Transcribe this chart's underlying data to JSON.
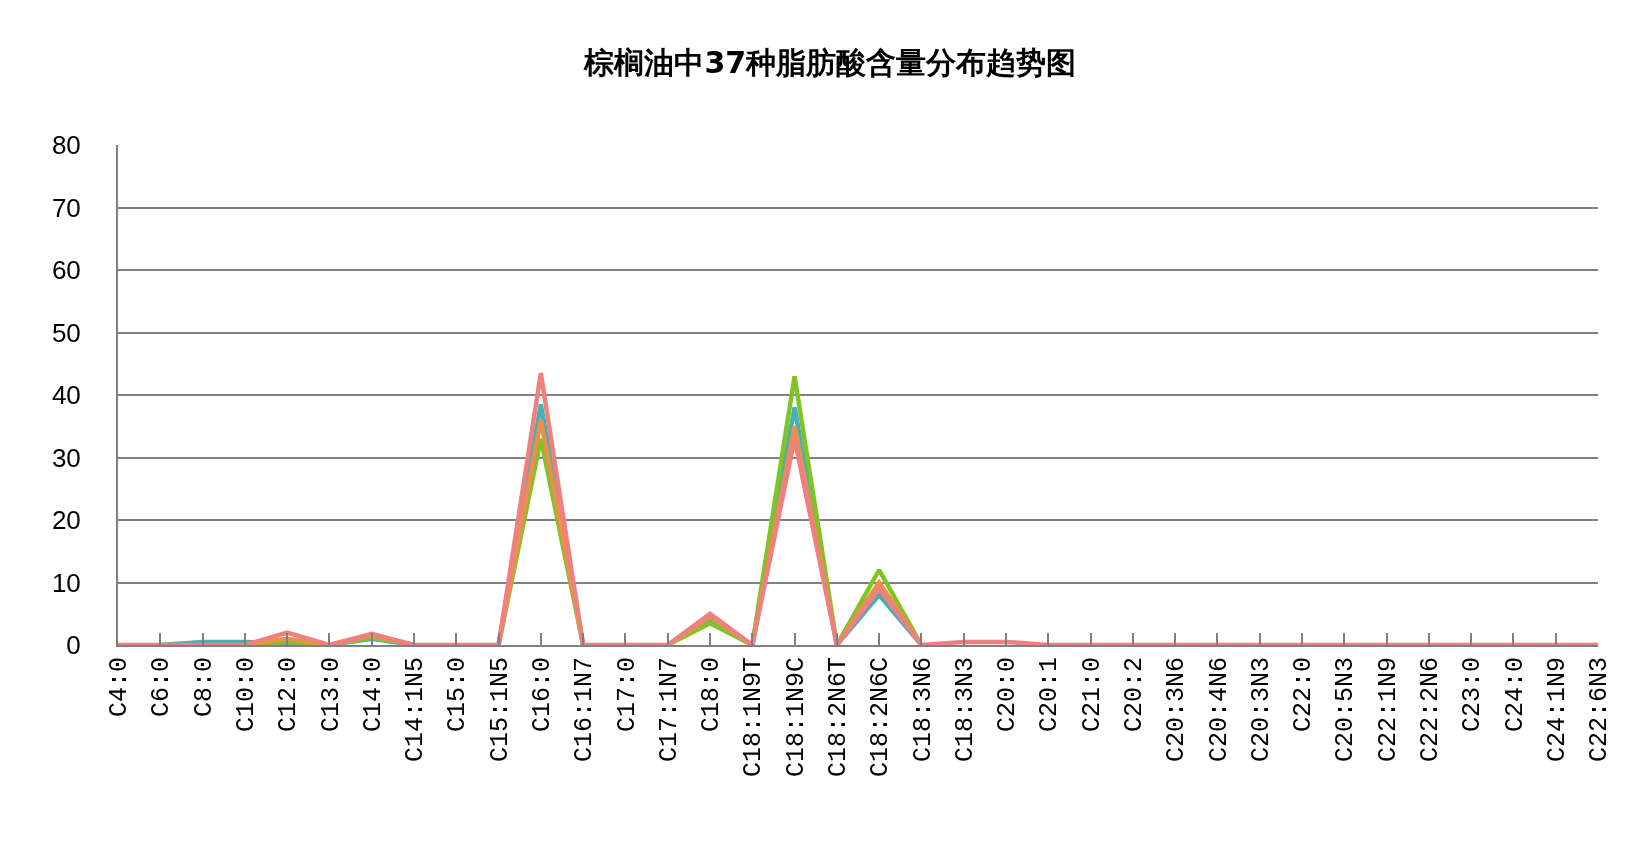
{
  "chart_data": {
    "type": "line",
    "title": "棕榈油中37种脂肪酸含量分布趋势图",
    "categories": [
      "C4:0",
      "C6:0",
      "C8:0",
      "C10:0",
      "C12:0",
      "C13:0",
      "C14:0",
      "C14:1N5",
      "C15:0",
      "C15:1N5",
      "C16:0",
      "C16:1N7",
      "C17:0",
      "C17:1N7",
      "C18:0",
      "C18:1N9T",
      "C18:1N9C",
      "C18:2N6T",
      "C18:2N6C",
      "C18:3N6",
      "C18:3N3",
      "C20:0",
      "C20:1",
      "C21:0",
      "C20:2",
      "C20:3N6",
      "C20:4N6",
      "C20:3N3",
      "C22:0",
      "C20:5N3",
      "C22:1N9",
      "C22:2N6",
      "C23:0",
      "C24:0",
      "C24:1N9",
      "C22:6N3"
    ],
    "series": [
      {
        "color": "#48b0b4",
        "values": [
          null,
          0,
          0.5,
          0.5,
          0.3,
          0,
          1,
          0,
          null,
          0,
          38.5,
          0,
          null,
          0,
          4,
          0,
          38,
          0,
          8,
          0,
          null,
          null,
          null,
          null,
          null,
          null,
          null,
          null,
          null,
          null,
          null,
          null,
          null,
          null,
          null,
          null
        ]
      },
      {
        "color": "#80c424",
        "values": [
          null,
          null,
          null,
          0,
          0.5,
          0,
          1.2,
          0,
          null,
          0,
          33,
          0,
          null,
          0,
          3.5,
          0,
          43,
          0,
          12,
          0,
          null,
          null,
          null,
          null,
          null,
          null,
          null,
          null,
          null,
          null,
          null,
          null,
          null,
          null,
          null,
          null
        ]
      },
      {
        "color": "#e8904c",
        "values": [
          null,
          null,
          null,
          0,
          1,
          0,
          1.5,
          0,
          null,
          0,
          36,
          0,
          null,
          0,
          4.5,
          0,
          35,
          0,
          10,
          0,
          null,
          null,
          null,
          null,
          null,
          null,
          null,
          null,
          null,
          null,
          null,
          null,
          null,
          null,
          null,
          null
        ]
      },
      {
        "color": "#f08080",
        "values": [
          0,
          0,
          0,
          0,
          2,
          0,
          1.8,
          0,
          0,
          0,
          43.5,
          0,
          0,
          0,
          5,
          0,
          33,
          0,
          9,
          0,
          0.5,
          0.5,
          0,
          0,
          0,
          0,
          0,
          0,
          0,
          0,
          0,
          0,
          0,
          0,
          0,
          0
        ]
      }
    ],
    "ylim": [
      0,
      80
    ],
    "yticks": [
      0,
      10,
      20,
      30,
      40,
      50,
      60,
      70,
      80
    ],
    "grid": "y"
  }
}
